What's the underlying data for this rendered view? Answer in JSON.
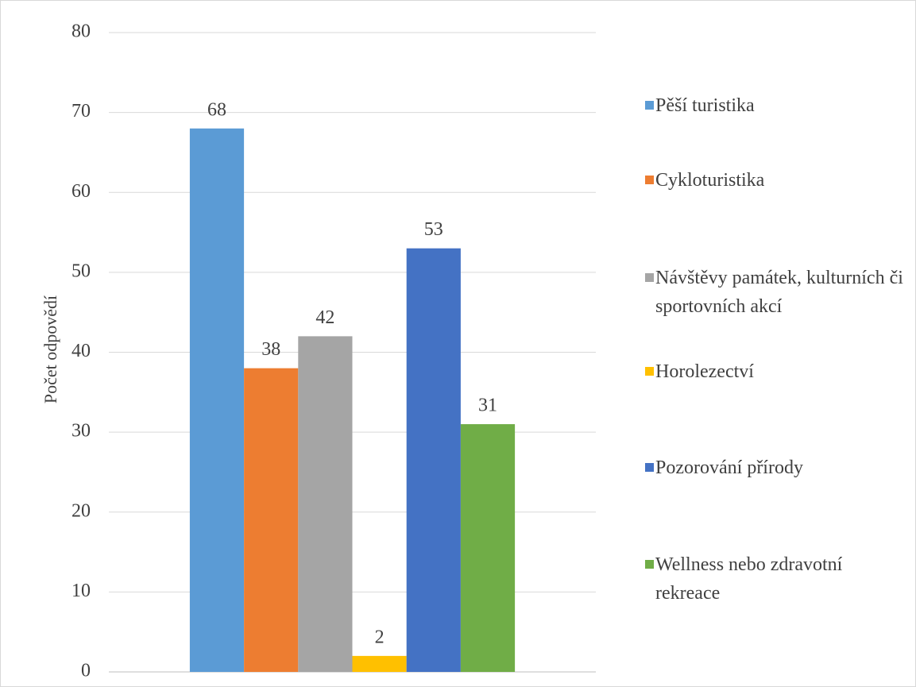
{
  "chart_data": {
    "type": "bar",
    "y_axis_label": "Počet odpovědí",
    "categories": [
      null
    ],
    "series": [
      {
        "name": "Pěší turistika",
        "color": "#5b9bd5",
        "values": [
          68
        ]
      },
      {
        "name": "Cykloturistika",
        "color": "#ed7d31",
        "values": [
          38
        ]
      },
      {
        "name": "Návštěvy památek, kulturních či sportovních akcí",
        "color": "#a5a5a5",
        "values": [
          42
        ]
      },
      {
        "name": "Horolezectví",
        "color": "#ffc000",
        "values": [
          2
        ]
      },
      {
        "name": "Pozorování přírody",
        "color": "#4472c4",
        "values": [
          53
        ]
      },
      {
        "name": "Wellness nebo zdravotní rekreace",
        "color": "#70ad47",
        "values": [
          31
        ]
      }
    ],
    "ylim": [
      0,
      80
    ],
    "yticks": [
      0,
      10,
      20,
      30,
      40,
      50,
      60,
      70,
      80
    ],
    "grid": true,
    "legend": "right",
    "data_labels": true
  }
}
